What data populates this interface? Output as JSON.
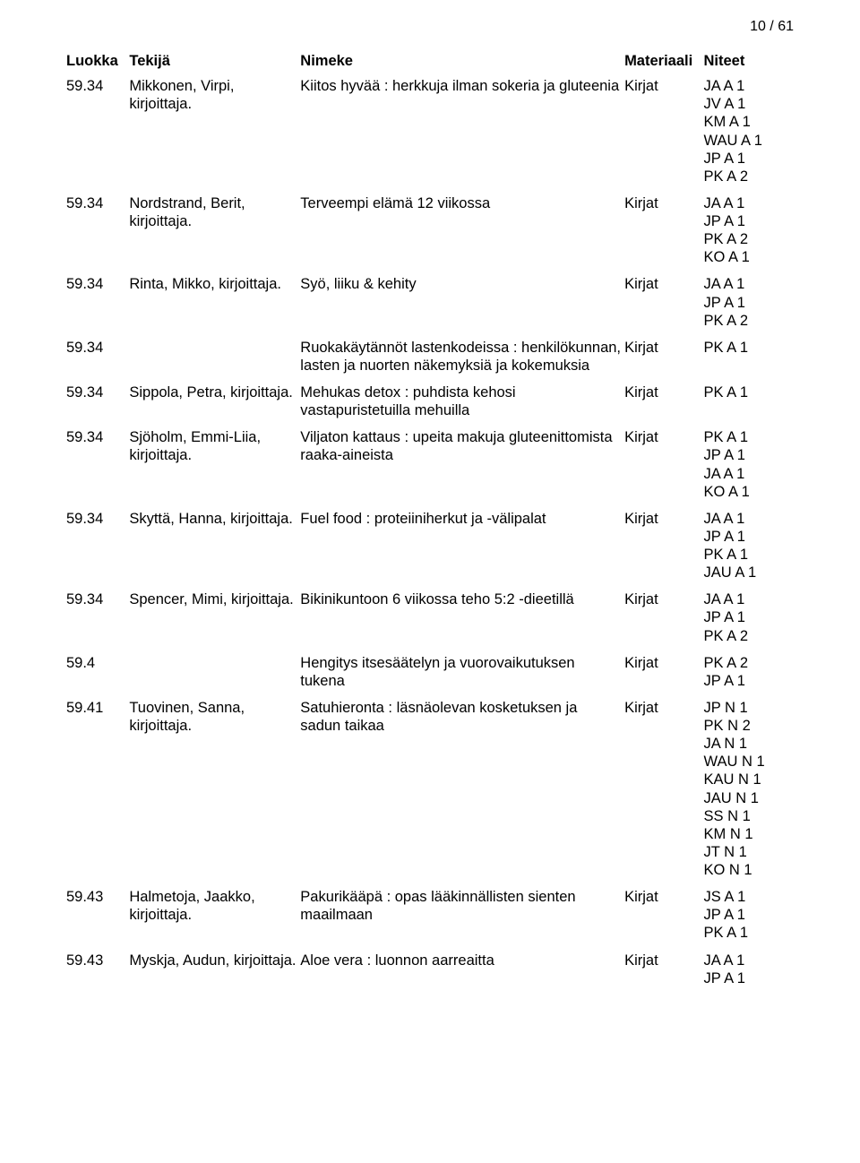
{
  "pageNumber": "10 / 61",
  "headers": {
    "luokka": "Luokka",
    "tekija": "Tekijä",
    "nimeke": "Nimeke",
    "materiaali": "Materiaali",
    "niteet": "Niteet"
  },
  "rows": [
    {
      "luokka": "59.34",
      "tekija": "Mikkonen, Virpi, kirjoittaja.",
      "nimeke": "Kiitos hyvää : herkkuja ilman sokeria ja gluteenia",
      "materiaali": "Kirjat",
      "niteet": [
        "JA A 1",
        "JV A 1",
        "KM A 1",
        "WAU A 1",
        "JP A 1",
        "PK A 2"
      ]
    },
    {
      "luokka": "59.34",
      "tekija": "Nordstrand, Berit, kirjoittaja.",
      "nimeke": "Terveempi elämä 12 viikossa",
      "materiaali": "Kirjat",
      "niteet": [
        "JA A 1",
        "JP A 1",
        "PK A 2",
        "KO A 1"
      ]
    },
    {
      "luokka": "59.34",
      "tekija": "Rinta, Mikko, kirjoittaja.",
      "nimeke": "Syö, liiku & kehity",
      "materiaali": "Kirjat",
      "niteet": [
        "JA A 1",
        "JP A 1",
        "PK A 2"
      ]
    },
    {
      "luokka": "59.34",
      "tekija": "",
      "nimeke": "Ruokakäytännöt lastenkodeissa : henkilökunnan, lasten ja nuorten näkemyksiä ja kokemuksia",
      "materiaali": "Kirjat",
      "niteet": [
        "PK A 1"
      ]
    },
    {
      "luokka": "59.34",
      "tekija": "Sippola, Petra, kirjoittaja.",
      "nimeke": "Mehukas detox : puhdista kehosi vastapuristetuilla mehuilla",
      "materiaali": "Kirjat",
      "niteet": [
        "PK A 1"
      ]
    },
    {
      "luokka": "59.34",
      "tekija": "Sjöholm, Emmi-Liia, kirjoittaja.",
      "nimeke": "Viljaton kattaus : upeita makuja gluteenittomista raaka-aineista",
      "materiaali": "Kirjat",
      "niteet": [
        "PK A 1",
        "JP A 1",
        "JA A 1",
        "KO A 1"
      ]
    },
    {
      "luokka": "59.34",
      "tekija": "Skyttä, Hanna, kirjoittaja.",
      "nimeke": "Fuel food : proteiiniherkut ja -välipalat",
      "materiaali": "Kirjat",
      "niteet": [
        "JA A 1",
        "JP A 1",
        "PK A 1",
        "JAU A 1"
      ]
    },
    {
      "luokka": "59.34",
      "tekija": "Spencer, Mimi, kirjoittaja.",
      "nimeke": "Bikinikuntoon 6 viikossa teho 5:2 -dieetillä",
      "materiaali": "Kirjat",
      "niteet": [
        "JA A 1",
        "JP A 1",
        "PK A 2"
      ]
    },
    {
      "luokka": "59.4",
      "tekija": "",
      "nimeke": "Hengitys itsesäätelyn ja vuorovaikutuksen tukena",
      "materiaali": "Kirjat",
      "niteet": [
        "PK A 2",
        "JP A 1"
      ]
    },
    {
      "luokka": "59.41",
      "tekija": "Tuovinen, Sanna, kirjoittaja.",
      "nimeke": "Satuhieronta : läsnäolevan kosketuksen ja sadun taikaa",
      "materiaali": "Kirjat",
      "niteet": [
        "JP N 1",
        "PK N 2",
        "JA N 1",
        "WAU N 1",
        "KAU N 1",
        "JAU N 1",
        "SS N 1",
        "KM N 1",
        "JT N 1",
        "KO N 1"
      ]
    },
    {
      "luokka": "59.43",
      "tekija": "Halmetoja, Jaakko, kirjoittaja.",
      "nimeke": "Pakurikääpä : opas lääkinnällisten sienten maailmaan",
      "materiaali": "Kirjat",
      "niteet": [
        "JS A 1",
        "JP A 1",
        "PK A 1"
      ]
    },
    {
      "luokka": "59.43",
      "tekija": "Myskja, Audun, kirjoittaja.",
      "nimeke": "Aloe vera : luonnon aarreaitta",
      "materiaali": "Kirjat",
      "niteet": [
        "JA A 1",
        "JP A 1"
      ]
    }
  ]
}
